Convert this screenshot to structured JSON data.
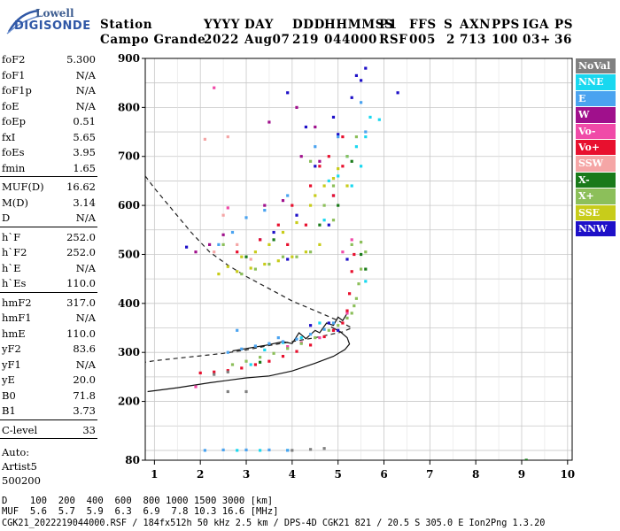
{
  "logo": {
    "line1": "Lowell",
    "line2": "DIGISONDE"
  },
  "header": {
    "row1": [
      "Station",
      "YYYY",
      "DAY",
      "DDD",
      "HHMMSS",
      "P1",
      "FFS",
      "S",
      "AXN",
      "PPS",
      "IGA",
      "PS"
    ],
    "row2": [
      "Campo Grande",
      "2022",
      "Aug07",
      "219",
      "044000",
      "RSF",
      "005",
      "2",
      "713",
      "100",
      "03+",
      "36"
    ]
  },
  "params": {
    "group1": [
      [
        "foF2",
        "5.300"
      ],
      [
        "foF1",
        "N/A"
      ],
      [
        "foF1p",
        "N/A"
      ],
      [
        "foE",
        "N/A"
      ],
      [
        "foEp",
        "0.51"
      ],
      [
        "fxI",
        "5.65"
      ],
      [
        "foEs",
        "3.95"
      ],
      [
        "fmin",
        "1.65"
      ]
    ],
    "group2": [
      [
        "MUF(D)",
        "16.62"
      ],
      [
        "M(D)",
        "3.14"
      ],
      [
        "D",
        "N/A"
      ]
    ],
    "group3": [
      [
        "h`F",
        "252.0"
      ],
      [
        "h`F2",
        "252.0"
      ],
      [
        "h`E",
        "N/A"
      ],
      [
        "h`Es",
        "110.0"
      ]
    ],
    "group4": [
      [
        "hmF2",
        "317.0"
      ],
      [
        "hmF1",
        "N/A"
      ],
      [
        "hmE",
        "110.0"
      ],
      [
        "yF2",
        "83.6"
      ],
      [
        "yF1",
        "N/A"
      ],
      [
        "yE",
        "20.0"
      ],
      [
        "B0",
        "71.8"
      ],
      [
        "B1",
        "3.73"
      ]
    ],
    "group5": [
      [
        "C-level",
        "33"
      ]
    ],
    "auto": [
      "Auto:",
      "Artist5",
      "500200"
    ]
  },
  "legend": [
    {
      "label": "NoVal",
      "color": "#808080"
    },
    {
      "label": "NNE",
      "color": "#19d8f0"
    },
    {
      "label": "E",
      "color": "#4aa3f0"
    },
    {
      "label": "W",
      "color": "#a0108c"
    },
    {
      "label": "Vo-",
      "color": "#f04aa8"
    },
    {
      "label": "Vo+",
      "color": "#e8102e"
    },
    {
      "label": "SSW",
      "color": "#f5a6a6"
    },
    {
      "label": "X-",
      "color": "#1a7a1a"
    },
    {
      "label": "X+",
      "color": "#8cbf5a"
    },
    {
      "label": "SSE",
      "color": "#c8cc1a"
    },
    {
      "label": "NNW",
      "color": "#1e10c8"
    }
  ],
  "footer": {
    "line1": "D    100  200  400  600  800 1000 1500 3000 [km]",
    "line2": "MUF  5.6  5.7  5.9  6.3  6.9  7.8 10.3 16.6 [MHz]",
    "line3": "CGK21_2022219044000.RSF / 184fx512h 50 kHz 2.5 km / DPS-4D CGK21 821 / 20.5 S 305.0 E Ion2Png 1.3.20"
  },
  "chart_data": {
    "type": "scatter",
    "title": "",
    "xlabel": "",
    "ylabel": "",
    "xlim": [
      0.8,
      10.1
    ],
    "ylim": [
      80,
      900
    ],
    "x_ticks": [
      1,
      2,
      3,
      4,
      5,
      6,
      7,
      8,
      9,
      10
    ],
    "y_ticks": [
      80,
      200,
      300,
      400,
      500,
      600,
      700,
      800,
      900
    ],
    "grid": true,
    "series": [
      {
        "name": "NNW",
        "color": "#1e10c8",
        "points": [
          [
            5.4,
            865
          ],
          [
            5.5,
            855
          ],
          [
            5.6,
            880
          ],
          [
            5.3,
            820
          ],
          [
            4.9,
            780
          ],
          [
            5.0,
            745
          ],
          [
            4.3,
            760
          ],
          [
            3.9,
            830
          ],
          [
            4.5,
            680
          ],
          [
            4.9,
            620
          ],
          [
            4.1,
            580
          ],
          [
            3.6,
            545
          ],
          [
            3.3,
            530
          ],
          [
            4.8,
            560
          ],
          [
            5.2,
            490
          ],
          [
            3.9,
            490
          ],
          [
            4.4,
            355
          ],
          [
            4.8,
            360
          ],
          [
            5.0,
            345
          ],
          [
            6.3,
            830
          ],
          [
            1.7,
            515
          ]
        ]
      },
      {
        "name": "NNE",
        "color": "#19d8f0",
        "points": [
          [
            5.7,
            780
          ],
          [
            5.9,
            775
          ],
          [
            5.6,
            740
          ],
          [
            5.4,
            720
          ],
          [
            5.2,
            700
          ],
          [
            5.5,
            680
          ],
          [
            5.0,
            660
          ],
          [
            4.8,
            650
          ],
          [
            3.1,
            275
          ],
          [
            3.4,
            305
          ],
          [
            3.8,
            320
          ],
          [
            4.2,
            330
          ],
          [
            4.6,
            360
          ],
          [
            5.6,
            445
          ],
          [
            2.8,
            100
          ],
          [
            3.3,
            100
          ],
          [
            3.9,
            100
          ],
          [
            5.3,
            640
          ],
          [
            4.7,
            570
          ]
        ]
      },
      {
        "name": "E",
        "color": "#4aa3f0",
        "points": [
          [
            2.6,
            300
          ],
          [
            2.9,
            307
          ],
          [
            3.2,
            313
          ],
          [
            3.5,
            318
          ],
          [
            3.8,
            322
          ],
          [
            4.1,
            327
          ],
          [
            4.4,
            337
          ],
          [
            4.7,
            347
          ],
          [
            4.9,
            360
          ],
          [
            2.1,
            100
          ],
          [
            2.5,
            101
          ],
          [
            3.0,
            101
          ],
          [
            3.5,
            101
          ],
          [
            3.9,
            100
          ],
          [
            5.5,
            810
          ],
          [
            5.6,
            750
          ],
          [
            5.0,
            740
          ],
          [
            4.5,
            720
          ],
          [
            3.9,
            620
          ],
          [
            3.4,
            590
          ],
          [
            3.0,
            575
          ],
          [
            2.7,
            545
          ],
          [
            2.4,
            520
          ],
          [
            2.8,
            345
          ],
          [
            3.7,
            330
          ]
        ]
      },
      {
        "name": "W",
        "color": "#a0108c",
        "points": [
          [
            4.2,
            700
          ],
          [
            4.6,
            690
          ],
          [
            3.4,
            600
          ],
          [
            3.8,
            610
          ],
          [
            2.2,
            520
          ],
          [
            2.5,
            540
          ],
          [
            4.1,
            800
          ],
          [
            3.5,
            770
          ],
          [
            1.9,
            505
          ],
          [
            4.5,
            760
          ]
        ]
      },
      {
        "name": "Vo-",
        "color": "#f04aa8",
        "points": [
          [
            5.3,
            530
          ],
          [
            5.1,
            505
          ],
          [
            4.6,
            330
          ],
          [
            4.9,
            345
          ],
          [
            5.2,
            380
          ],
          [
            4.2,
            320
          ],
          [
            3.9,
            312
          ],
          [
            2.6,
            595
          ],
          [
            2.3,
            840
          ],
          [
            1.9,
            230
          ]
        ]
      },
      {
        "name": "Vo+",
        "color": "#e8102e",
        "points": [
          [
            2.0,
            258
          ],
          [
            2.3,
            260
          ],
          [
            2.6,
            263
          ],
          [
            2.9,
            268
          ],
          [
            3.2,
            275
          ],
          [
            3.5,
            282
          ],
          [
            3.8,
            292
          ],
          [
            4.1,
            302
          ],
          [
            4.4,
            315
          ],
          [
            4.7,
            332
          ],
          [
            4.9,
            345
          ],
          [
            5.1,
            360
          ],
          [
            5.2,
            385
          ],
          [
            5.25,
            420
          ],
          [
            5.3,
            465
          ],
          [
            5.35,
            500
          ],
          [
            5.1,
            740
          ],
          [
            4.8,
            700
          ],
          [
            4.4,
            640
          ],
          [
            4.0,
            600
          ],
          [
            3.7,
            560
          ],
          [
            3.3,
            530
          ],
          [
            2.8,
            505
          ],
          [
            4.6,
            680
          ],
          [
            4.3,
            560
          ],
          [
            3.9,
            520
          ],
          [
            4.9,
            620
          ],
          [
            5.1,
            680
          ]
        ]
      },
      {
        "name": "SSW",
        "color": "#f5a6a6",
        "points": [
          [
            2.3,
            505
          ],
          [
            2.8,
            520
          ],
          [
            3.1,
            490
          ],
          [
            2.5,
            580
          ],
          [
            2.1,
            735
          ],
          [
            2.6,
            740
          ]
        ]
      },
      {
        "name": "X-",
        "color": "#1a7a1a",
        "points": [
          [
            4.6,
            560
          ],
          [
            5.0,
            600
          ],
          [
            5.3,
            690
          ],
          [
            3.6,
            530
          ],
          [
            3.0,
            495
          ],
          [
            5.5,
            500
          ],
          [
            5.6,
            470
          ],
          [
            9.1,
            80
          ],
          [
            3.3,
            280
          ]
        ]
      },
      {
        "name": "X+",
        "color": "#8cbf5a",
        "points": [
          [
            5.5,
            525
          ],
          [
            5.6,
            505
          ],
          [
            5.5,
            470
          ],
          [
            5.45,
            440
          ],
          [
            5.4,
            410
          ],
          [
            5.35,
            395
          ],
          [
            5.3,
            380
          ],
          [
            5.2,
            370
          ],
          [
            5.0,
            355
          ],
          [
            4.8,
            345
          ],
          [
            4.5,
            330
          ],
          [
            4.2,
            318
          ],
          [
            3.9,
            308
          ],
          [
            3.6,
            298
          ],
          [
            3.3,
            290
          ],
          [
            3.0,
            282
          ],
          [
            2.7,
            275
          ],
          [
            4.9,
            570
          ],
          [
            4.7,
            600
          ],
          [
            4.9,
            640
          ],
          [
            5.2,
            700
          ],
          [
            5.4,
            740
          ],
          [
            4.4,
            505
          ],
          [
            4.1,
            495
          ],
          [
            3.8,
            495
          ],
          [
            3.5,
            480
          ],
          [
            3.2,
            470
          ],
          [
            2.9,
            460
          ],
          [
            5.3,
            520
          ],
          [
            2.5,
            520
          ],
          [
            4.4,
            690
          ]
        ]
      },
      {
        "name": "SSE",
        "color": "#c8cc1a",
        "points": [
          [
            4.9,
            655
          ],
          [
            5.0,
            675
          ],
          [
            4.7,
            640
          ],
          [
            4.4,
            600
          ],
          [
            4.1,
            565
          ],
          [
            3.8,
            545
          ],
          [
            3.5,
            520
          ],
          [
            3.2,
            505
          ],
          [
            2.9,
            495
          ],
          [
            2.6,
            475
          ],
          [
            2.4,
            460
          ],
          [
            4.6,
            520
          ],
          [
            4.3,
            505
          ],
          [
            4.0,
            495
          ],
          [
            3.7,
            487
          ],
          [
            3.4,
            480
          ],
          [
            3.1,
            472
          ],
          [
            2.8,
            465
          ],
          [
            4.5,
            620
          ],
          [
            5.2,
            640
          ]
        ]
      },
      {
        "name": "NoVal",
        "color": "#808080",
        "points": [
          [
            2.3,
            255
          ],
          [
            2.6,
            260
          ],
          [
            4.0,
            100
          ],
          [
            4.4,
            102
          ],
          [
            4.7,
            104
          ],
          [
            2.6,
            220
          ],
          [
            3.0,
            220
          ]
        ]
      }
    ],
    "profile_curve": [
      [
        0.85,
        220
      ],
      [
        1.5,
        228
      ],
      [
        2.2,
        238
      ],
      [
        3.0,
        248
      ],
      [
        3.5,
        252
      ],
      [
        4.0,
        262
      ],
      [
        4.5,
        278
      ],
      [
        4.9,
        292
      ],
      [
        5.15,
        306
      ],
      [
        5.25,
        317
      ],
      [
        5.2,
        330
      ],
      [
        5.05,
        342
      ],
      [
        4.85,
        352
      ]
    ],
    "trace_curve": [
      [
        2.7,
        303
      ],
      [
        3.0,
        308
      ],
      [
        3.4,
        314
      ],
      [
        3.8,
        322
      ],
      [
        4.0,
        318
      ],
      [
        4.15,
        340
      ],
      [
        4.3,
        328
      ],
      [
        4.5,
        345
      ],
      [
        4.6,
        340
      ],
      [
        4.75,
        360
      ],
      [
        4.9,
        355
      ],
      [
        5.0,
        372
      ],
      [
        5.1,
        365
      ],
      [
        5.2,
        380
      ]
    ],
    "muf_dashed_curve": [
      [
        0.8,
        660
      ],
      [
        1.0,
        635
      ],
      [
        1.4,
        590
      ],
      [
        1.8,
        545
      ],
      [
        2.2,
        505
      ],
      [
        2.6,
        478
      ],
      [
        3.0,
        455
      ],
      [
        3.5,
        430
      ],
      [
        4.0,
        405
      ],
      [
        4.5,
        385
      ],
      [
        5.0,
        365
      ],
      [
        5.3,
        350
      ],
      [
        5.1,
        342
      ],
      [
        4.5,
        330
      ],
      [
        4.0,
        322
      ],
      [
        3.5,
        314
      ],
      [
        3.0,
        305
      ],
      [
        2.5,
        298
      ],
      [
        2.0,
        293
      ],
      [
        1.5,
        288
      ],
      [
        1.0,
        283
      ],
      [
        0.8,
        280
      ]
    ]
  }
}
